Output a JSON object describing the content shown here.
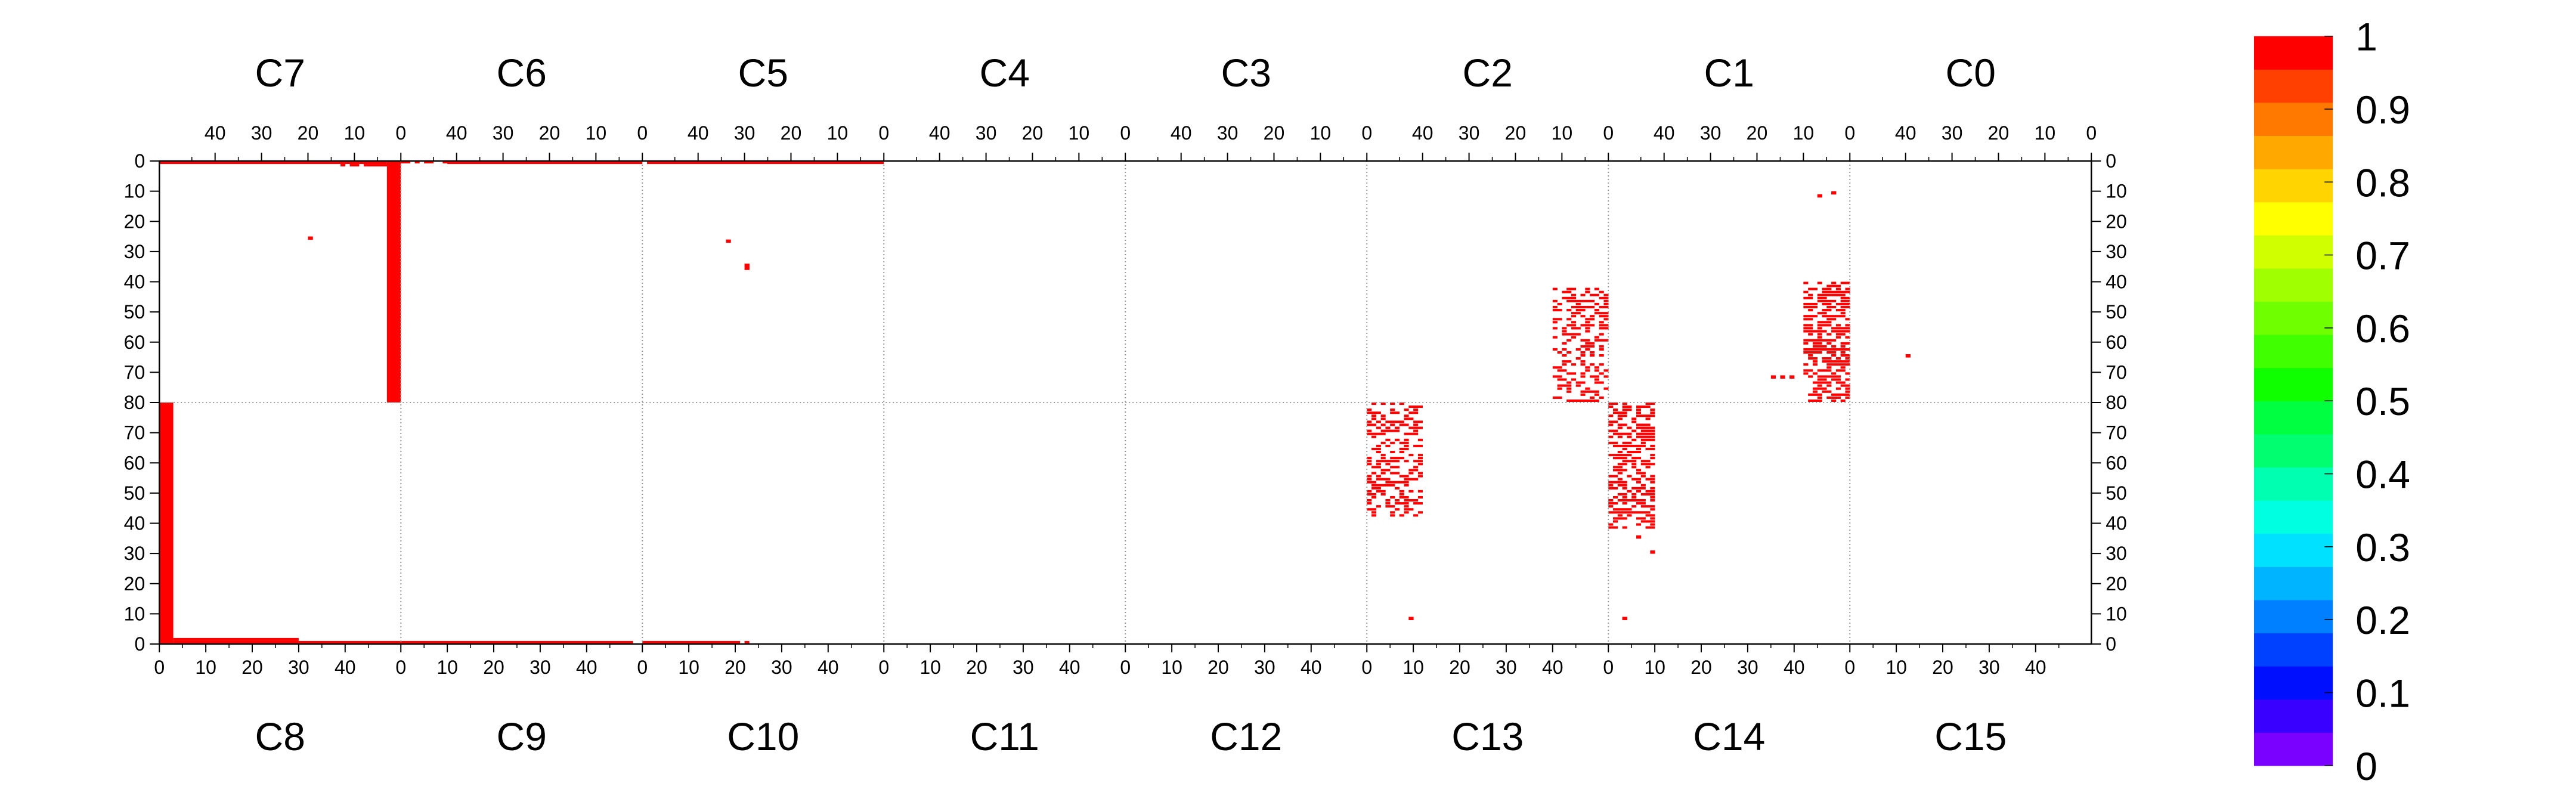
{
  "chart_data": {
    "type": "heatmap",
    "title": "",
    "top_chip_labels": [
      "C7",
      "C6",
      "C5",
      "C4",
      "C3",
      "C2",
      "C1",
      "C0"
    ],
    "bottom_chip_labels": [
      "C8",
      "C9",
      "C10",
      "C11",
      "C12",
      "C13",
      "C14",
      "C15"
    ],
    "top_axis_ticks": [
      "40",
      "30",
      "20",
      "10",
      "0"
    ],
    "bottom_axis_ticks": [
      "0",
      "10",
      "20",
      "30",
      "40"
    ],
    "left_axis_ticks": [
      "0",
      "10",
      "20",
      "30",
      "40",
      "50",
      "60",
      "70",
      "80",
      "70",
      "60",
      "50",
      "40",
      "30",
      "20",
      "10",
      "0"
    ],
    "right_axis_ticks": [
      "0",
      "10",
      "20",
      "30",
      "40",
      "50",
      "60",
      "70",
      "80",
      "70",
      "60",
      "50",
      "40",
      "30",
      "20",
      "10",
      "0"
    ],
    "chip_columns": 52,
    "rows_per_half": 80,
    "grid": true,
    "colorbar": {
      "range": [
        0,
        1
      ],
      "tick_labels": [
        "1",
        "0.9",
        "0.8",
        "0.7",
        "0.6",
        "0.5",
        "0.4",
        "0.3",
        "0.2",
        "0.1",
        "0"
      ],
      "colors": [
        "#7a00ff",
        "#3a00ff",
        "#0010ff",
        "#0040ff",
        "#0080ff",
        "#00b4ff",
        "#00e0ff",
        "#00ffe0",
        "#00ffb0",
        "#00ff70",
        "#00ff40",
        "#10ff00",
        "#40ff00",
        "#70ff00",
        "#a0ff00",
        "#d0ff00",
        "#ffff00",
        "#ffd400",
        "#ffa800",
        "#ff7800",
        "#ff4000",
        "#ff0000"
      ]
    },
    "value_note": "hit cells shown at value 1 (red)",
    "hits": {
      "value": 1,
      "color": "#ff0000",
      "segments": [
        {
          "chip": 7,
          "cols": [
            0,
            3
          ],
          "rows": [
            0,
            80
          ],
          "fill": 1.0
        },
        {
          "chip": 8,
          "cols": [
            0,
            3
          ],
          "rows": [
            0,
            80
          ],
          "fill": 1.0
        },
        {
          "chip": 7,
          "cols": [
            3,
            52
          ],
          "rows": [
            0,
            1
          ],
          "fill": 1.0
        },
        {
          "chip": 7,
          "cols": [
            3,
            14
          ],
          "rows": [
            1,
            2
          ],
          "fill": 0.9
        },
        {
          "chip": 6,
          "cols": [
            0,
            42
          ],
          "rows": [
            0,
            1
          ],
          "fill": 1.0
        },
        {
          "chip": 6,
          "cols": [
            42,
            52
          ],
          "rows": [
            0,
            1
          ],
          "fill": 0.5
        },
        {
          "chip": 5,
          "cols": [
            0,
            51
          ],
          "rows": [
            0,
            1
          ],
          "fill": 1.0
        },
        {
          "chip": 8,
          "cols": [
            3,
            30
          ],
          "rows": [
            0,
            1
          ],
          "fill": 1.0
        },
        {
          "chip": 8,
          "cols": [
            3,
            30
          ],
          "rows": [
            1,
            2
          ],
          "fill": 1.0
        },
        {
          "chip": 8,
          "cols": [
            30,
            52
          ],
          "rows": [
            0,
            1
          ],
          "fill": 1.0
        },
        {
          "chip": 9,
          "cols": [
            0,
            50
          ],
          "rows": [
            0,
            1
          ],
          "fill": 1.0
        },
        {
          "chip": 10,
          "cols": [
            0,
            20
          ],
          "rows": [
            0,
            1
          ],
          "fill": 1.0
        },
        {
          "chip": 10,
          "cols": [
            20,
            23
          ],
          "rows": [
            0,
            1
          ],
          "fill": 0.3
        },
        {
          "chip": 1,
          "cols": [
            0,
            10
          ],
          "rows": [
            40,
            80
          ],
          "fill": 0.55
        },
        {
          "chip": 2,
          "cols": [
            0,
            12
          ],
          "rows": [
            42,
            80
          ],
          "fill": 0.4
        },
        {
          "chip": 13,
          "cols": [
            0,
            12
          ],
          "rows": [
            42,
            80
          ],
          "fill": 0.4
        },
        {
          "chip": 14,
          "cols": [
            0,
            10
          ],
          "rows": [
            38,
            80
          ],
          "fill": 0.55
        }
      ],
      "points": [
        {
          "chip": 7,
          "col": 19,
          "row": 25
        },
        {
          "chip": 5,
          "col": 33,
          "row": 26
        },
        {
          "chip": 5,
          "col": 29,
          "row": 34
        },
        {
          "chip": 5,
          "col": 29,
          "row": 35
        },
        {
          "chip": 1,
          "col": 3,
          "row": 10
        },
        {
          "chip": 1,
          "col": 6,
          "row": 11
        },
        {
          "chip": 0,
          "col": 39,
          "row": 64
        },
        {
          "chip": 1,
          "col": 12,
          "row": 71
        },
        {
          "chip": 1,
          "col": 14,
          "row": 71
        },
        {
          "chip": 1,
          "col": 16,
          "row": 71
        },
        {
          "chip": 13,
          "col": 9,
          "row": 8
        },
        {
          "chip": 14,
          "col": 3,
          "row": 8
        },
        {
          "chip": 14,
          "col": 9,
          "row": 30
        },
        {
          "chip": 14,
          "col": 6,
          "row": 35
        }
      ]
    }
  }
}
